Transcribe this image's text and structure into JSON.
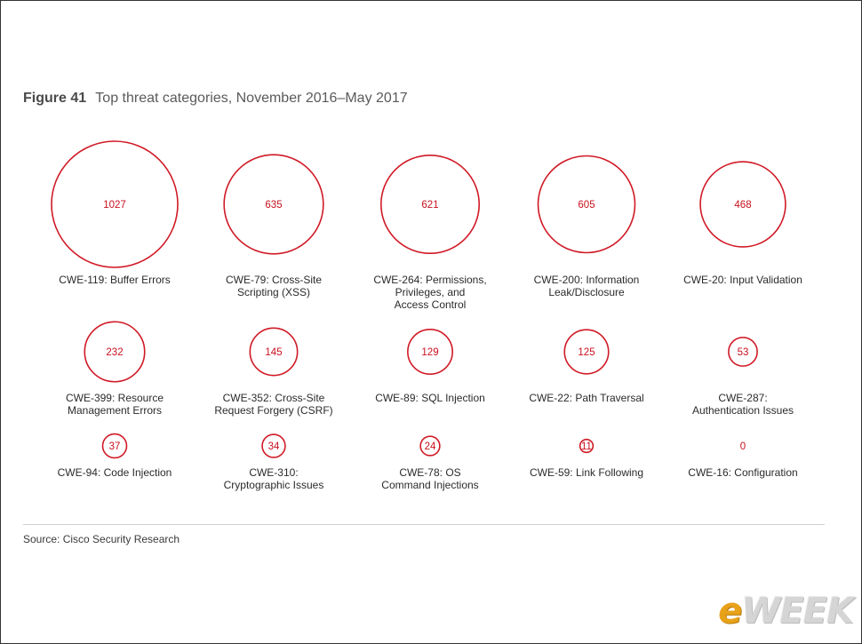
{
  "figure": {
    "label": "Figure 41",
    "title": "Top threat categories, November 2016–May 2017"
  },
  "source": "Source: Cisco Security Research",
  "watermark": {
    "e": "e",
    "rest": "WEEK"
  },
  "colors": {
    "bubble_stroke": "#d01a26",
    "value_text": "#c8101e"
  },
  "chart_data": {
    "type": "bubble",
    "layout": "grid",
    "columns": 5,
    "items": [
      {
        "value": 1027,
        "label": [
          "CWE-119: Buffer Errors"
        ]
      },
      {
        "value": 635,
        "label": [
          "CWE-79: Cross-Site",
          "Scripting (XSS)"
        ]
      },
      {
        "value": 621,
        "label": [
          "CWE-264: Permissions,",
          "Privileges, and",
          "Access Control"
        ]
      },
      {
        "value": 605,
        "label": [
          "CWE-200: Information",
          "Leak/Disclosure"
        ]
      },
      {
        "value": 468,
        "label": [
          "CWE-20: Input Validation"
        ]
      },
      {
        "value": 232,
        "label": [
          "CWE-399: Resource",
          "Management Errors"
        ]
      },
      {
        "value": 145,
        "label": [
          "CWE-352: Cross-Site",
          "Request Forgery (CSRF)"
        ]
      },
      {
        "value": 129,
        "label": [
          "CWE-89: SQL Injection"
        ]
      },
      {
        "value": 125,
        "label": [
          "CWE-22: Path Traversal"
        ]
      },
      {
        "value": 53,
        "label": [
          "CWE-287:",
          "Authentication Issues"
        ]
      },
      {
        "value": 37,
        "label": [
          "CWE-94: Code Injection"
        ]
      },
      {
        "value": 34,
        "label": [
          "CWE-310:",
          "Cryptographic Issues"
        ]
      },
      {
        "value": 24,
        "label": [
          "CWE-78: OS",
          "Command Injections"
        ]
      },
      {
        "value": 11,
        "label": [
          "CWE-59: Link Following"
        ]
      },
      {
        "value": 0,
        "label": [
          "CWE-16: Configuration"
        ]
      }
    ]
  }
}
